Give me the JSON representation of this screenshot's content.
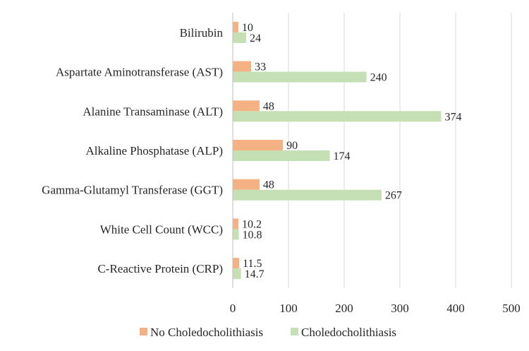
{
  "chart_data": {
    "type": "bar",
    "orientation": "horizontal",
    "categories": [
      "Bilirubin",
      "Aspartate Aminotransferase (AST)",
      "Alanine Transaminase (ALT)",
      "Alkaline Phosphatase (ALP)",
      "Gamma-Glutamyl Transferase (GGT)",
      "White Cell Count (WCC)",
      "C-Reactive Protein (CRP)"
    ],
    "series": [
      {
        "name": "No Choledocholithiasis",
        "color": "#f4b183",
        "values": [
          10,
          33,
          48,
          90,
          48,
          10.2,
          11.5
        ],
        "labels": [
          "10",
          "33",
          "48",
          "90",
          "48",
          "10.2",
          "11.5"
        ]
      },
      {
        "name": "Choledocholithiasis",
        "color": "#c5e0b4",
        "values": [
          24,
          240,
          374,
          174,
          267,
          10.8,
          14.7
        ],
        "labels": [
          "24",
          "240",
          "374",
          "174",
          "267",
          "10.8",
          "14.7"
        ]
      }
    ],
    "xlim": [
      0,
      500
    ],
    "xticks": [
      "0",
      "100",
      "200",
      "300",
      "400",
      "500"
    ],
    "grid": true,
    "legend_position": "bottom"
  }
}
